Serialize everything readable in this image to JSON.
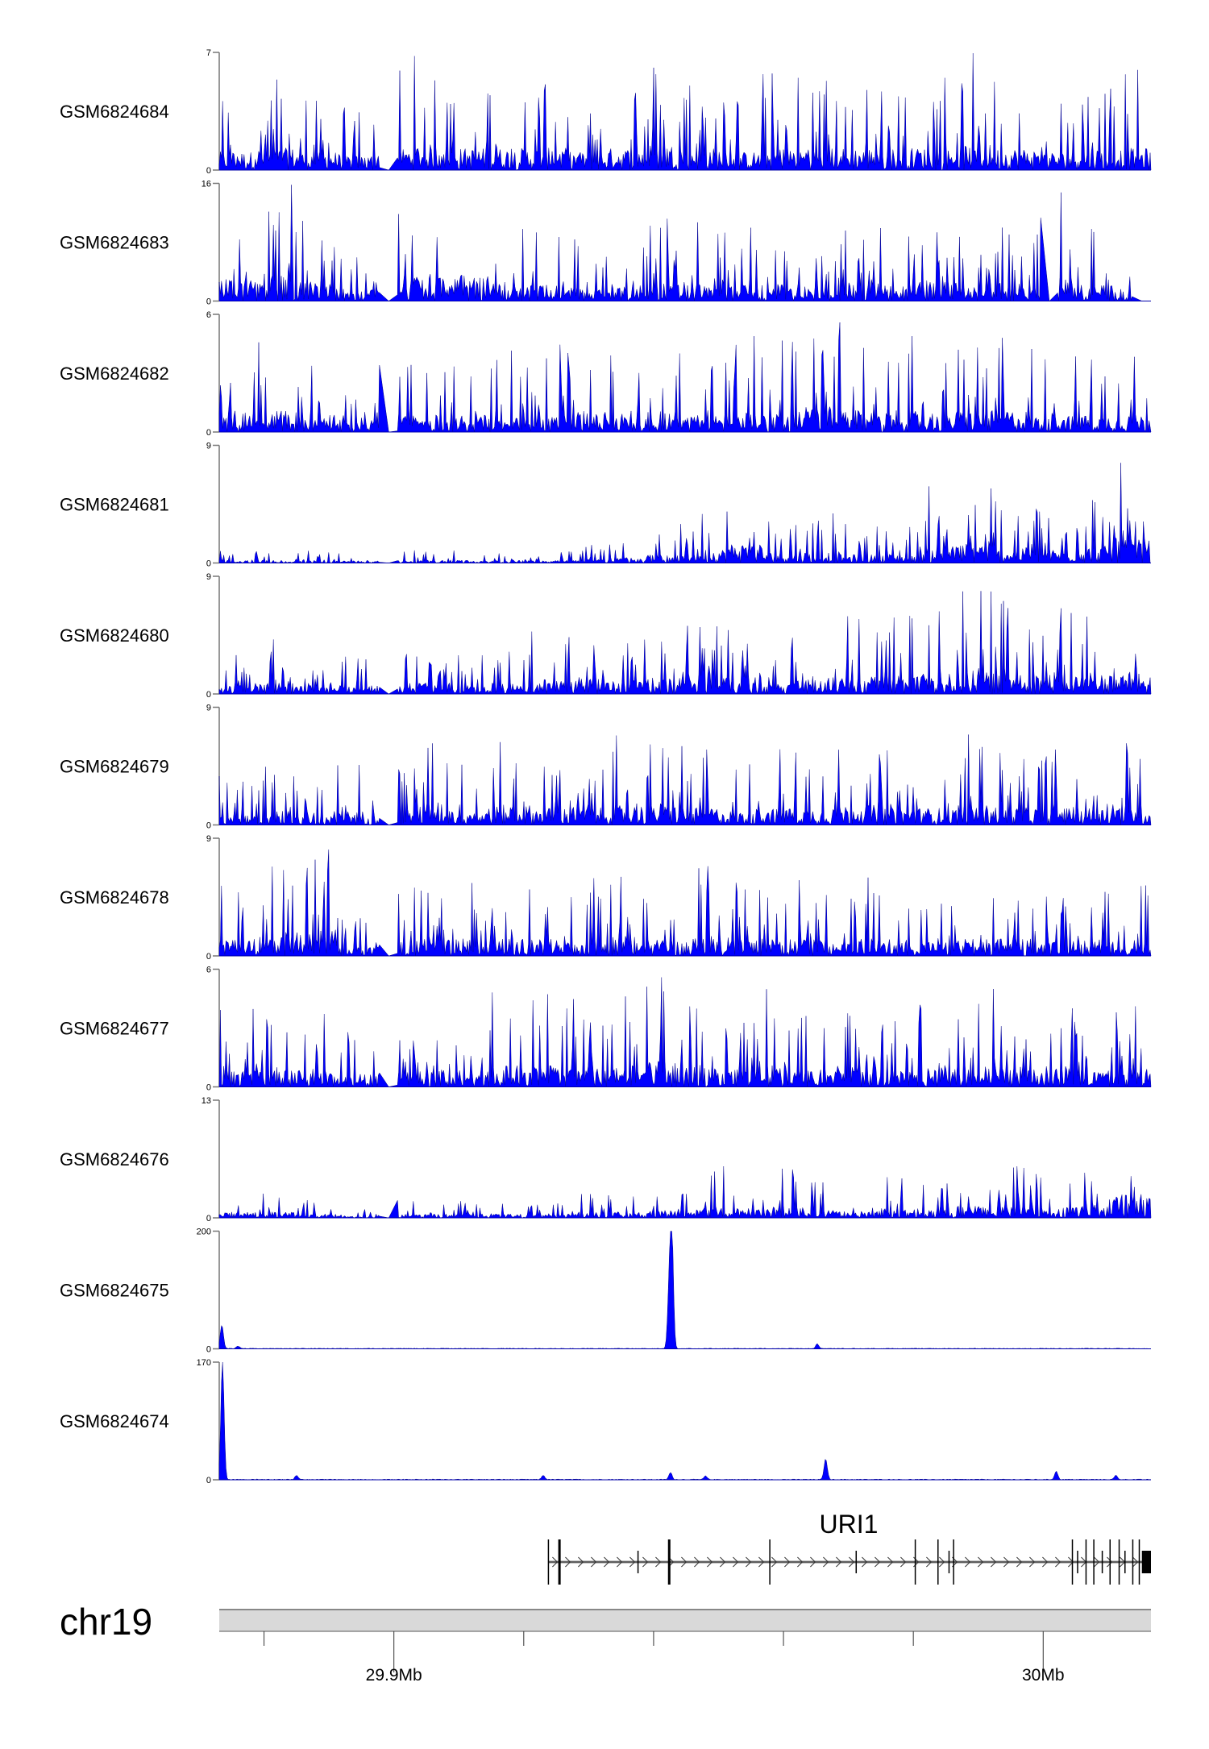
{
  "chart_data": {
    "type": "area",
    "title": "",
    "chromosome": "chr19",
    "xlabel": "",
    "xlim_mb": [
      29.8731,
      30.0166
    ],
    "x_ticks_mb": [
      29.88,
      29.9,
      29.92,
      29.94,
      29.96,
      29.98,
      30.0
    ],
    "x_tick_labels": [
      {
        "mb": 29.9,
        "label": "29.9Mb"
      },
      {
        "mb": 30.0,
        "label": "30Mb"
      }
    ],
    "color": "#0000ff",
    "common_gaps_mb": [
      [
        29.8979,
        29.9005
      ]
    ],
    "series": [
      {
        "name": "GSM6824684",
        "ylim": [
          0,
          7
        ],
        "profile": [
          5,
          6,
          5,
          4,
          6,
          7,
          6,
          6,
          6,
          5,
          6,
          7,
          6,
          5,
          6,
          6,
          6,
          5,
          6,
          7,
          6,
          5,
          6,
          6
        ],
        "peaks": []
      },
      {
        "name": "GSM6824683",
        "ylim": [
          0,
          16
        ],
        "profile": [
          14,
          16,
          12,
          7,
          13,
          15,
          16,
          12,
          10,
          9,
          11,
          12,
          11,
          10,
          11,
          9,
          11,
          10,
          12,
          9,
          11,
          15,
          10,
          6
        ],
        "peaks": [],
        "extra_gaps_mb": [
          [
            29.9997,
            30.0022
          ],
          [
            30.0138,
            30.0166
          ]
        ]
      },
      {
        "name": "GSM6824682",
        "ylim": [
          0,
          6
        ],
        "profile": [
          5,
          5,
          4,
          3,
          5,
          4,
          4,
          5,
          5,
          5,
          4,
          5,
          4,
          5,
          5,
          6,
          5,
          5,
          4,
          5,
          5,
          4,
          4,
          4
        ],
        "peaks": []
      },
      {
        "name": "GSM6824681",
        "ylim": [
          0,
          9
        ],
        "profile": [
          1,
          1,
          1,
          0.8,
          1,
          1,
          1,
          1,
          1,
          1.5,
          2,
          3,
          5,
          7,
          4,
          4,
          3,
          3,
          6,
          7,
          5,
          5,
          6,
          8.5
        ],
        "peaks": []
      },
      {
        "name": "GSM6824680",
        "ylim": [
          0,
          9
        ],
        "profile": [
          4,
          5,
          3,
          3,
          4,
          4,
          3,
          4,
          5,
          6,
          5,
          6,
          7,
          6,
          6,
          5,
          6,
          6,
          7,
          8,
          9,
          7,
          7,
          7
        ],
        "peaks": []
      },
      {
        "name": "GSM6824679",
        "ylim": [
          0,
          9
        ],
        "profile": [
          4,
          5,
          5,
          5,
          5,
          8,
          5,
          7,
          6,
          6,
          7,
          7,
          6,
          5,
          6,
          6,
          7,
          6,
          6,
          7,
          6,
          6,
          6,
          7
        ],
        "peaks": []
      },
      {
        "name": "GSM6824678",
        "ylim": [
          0,
          9
        ],
        "profile": [
          6,
          7,
          9,
          3,
          5,
          6,
          6,
          6,
          6,
          6,
          7,
          6,
          7,
          6,
          6,
          6,
          6,
          6,
          5,
          6,
          6,
          5,
          6,
          6
        ],
        "peaks": []
      },
      {
        "name": "GSM6824677",
        "ylim": [
          0,
          6
        ],
        "profile": [
          4,
          4,
          4,
          3,
          4,
          4,
          4,
          5,
          5,
          5,
          5,
          6,
          5,
          4,
          5,
          4,
          5,
          4,
          5,
          5,
          5,
          5,
          4,
          5
        ],
        "peaks": []
      },
      {
        "name": "GSM6824676",
        "ylim": [
          0,
          13
        ],
        "profile": [
          3,
          3,
          2,
          1,
          2,
          2,
          2,
          2,
          2,
          3,
          3,
          4,
          6,
          5,
          6,
          4,
          4,
          5,
          4,
          6,
          6,
          5,
          6,
          12
        ],
        "peaks": []
      },
      {
        "name": "GSM6824675",
        "ylim": [
          0,
          200
        ],
        "profile": [
          2,
          2,
          2,
          2,
          2,
          2,
          2,
          2,
          2,
          2,
          2,
          2,
          2,
          2,
          2,
          2,
          2,
          2,
          2,
          2,
          2,
          2,
          2,
          2
        ],
        "no_gap": true,
        "peaks": [
          [
            29.8735,
            40
          ],
          [
            29.876,
            4
          ],
          [
            29.9428,
            200
          ],
          [
            29.9424,
            95
          ],
          [
            29.9652,
            8
          ]
        ]
      },
      {
        "name": "GSM6824674",
        "ylim": [
          0,
          170
        ],
        "profile": [
          2,
          2,
          2,
          2,
          2,
          2,
          2,
          2,
          2,
          2,
          2,
          2,
          2,
          2,
          2,
          2,
          2,
          2,
          2,
          2,
          2,
          2,
          2,
          2
        ],
        "no_gap": true,
        "peaks": [
          [
            29.8736,
            170
          ],
          [
            29.885,
            6
          ],
          [
            29.923,
            6
          ],
          [
            29.9426,
            10
          ],
          [
            29.948,
            5
          ],
          [
            29.9665,
            30
          ],
          [
            30.002,
            12
          ],
          [
            30.0112,
            6
          ]
        ]
      }
    ],
    "gene_track": {
      "name": "URI1",
      "strand": "+",
      "start_mb": 29.9238,
      "end_mb": 30.0166,
      "exons_mb": [
        29.9238,
        29.9255,
        29.9376,
        29.9424,
        29.9579,
        29.9712,
        29.9803,
        29.9838,
        29.9855,
        29.9862,
        30.0045,
        30.0053,
        30.0066,
        30.0078,
        30.0091,
        30.0103,
        30.0117,
        30.0126,
        30.0138,
        30.0148
      ],
      "thick_exons_mb": [
        29.9255,
        29.9424
      ]
    }
  }
}
